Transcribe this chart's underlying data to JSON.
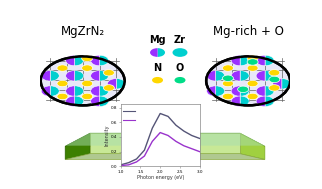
{
  "title_left": "MgZrN₂",
  "title_right": "Mg-rich + O",
  "bg_color": "#FFFFFF",
  "curve1_color": "#555577",
  "curve2_color": "#9933CC",
  "inset_xlabel": "Photon energy (eV)",
  "inset_ylabel": "Intensity",
  "photon_curve1_x": [
    1.0,
    1.2,
    1.4,
    1.6,
    1.8,
    2.0,
    2.2,
    2.4,
    2.6,
    2.8,
    3.0
  ],
  "photon_curve1_y": [
    0.02,
    0.05,
    0.1,
    0.22,
    0.52,
    0.72,
    0.68,
    0.56,
    0.48,
    0.42,
    0.38
  ],
  "photon_curve2_x": [
    1.0,
    1.2,
    1.4,
    1.6,
    1.8,
    2.0,
    2.2,
    2.4,
    2.6,
    2.8,
    3.0
  ],
  "photon_curve2_y": [
    0.01,
    0.02,
    0.06,
    0.14,
    0.34,
    0.46,
    0.42,
    0.34,
    0.28,
    0.24,
    0.2
  ],
  "color_mg_purple": "#9B30FF",
  "color_zr_cyan": "#00CFCF",
  "color_n_yellow": "#FFD700",
  "color_o_green": "#00DD88",
  "circ_bg": "#E8E8F8"
}
